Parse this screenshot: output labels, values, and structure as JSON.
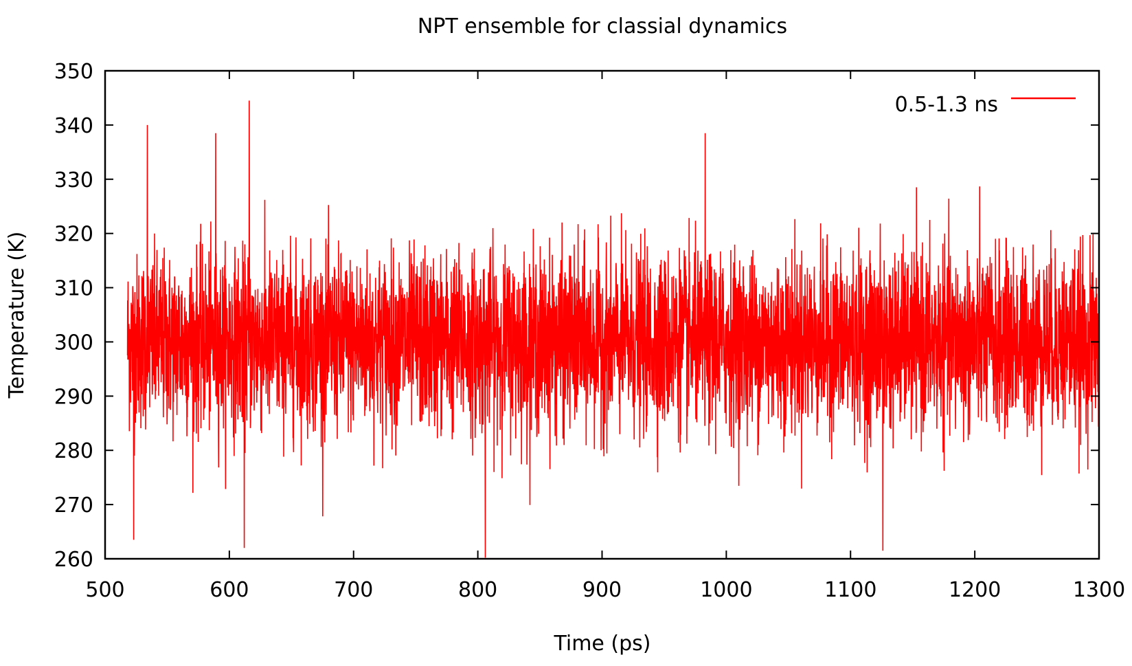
{
  "chart_data": {
    "type": "line",
    "title": "NPT ensemble for classial dynamics",
    "xlabel": "Time (ps)",
    "ylabel": "Temperature (K)",
    "xlim": [
      500,
      1300
    ],
    "ylim": [
      260,
      350
    ],
    "xticks": [
      500,
      600,
      700,
      800,
      900,
      1000,
      1100,
      1200,
      1300
    ],
    "yticks": [
      260,
      270,
      280,
      290,
      300,
      310,
      320,
      330,
      340,
      350
    ],
    "grid": false,
    "legend_position": "top-right",
    "series": [
      {
        "name": "0.5-1.3 ns",
        "color": "#ff0000",
        "x_range": [
          518,
          1300
        ],
        "mean": 300,
        "std": 8,
        "peaks": [
          {
            "x": 534,
            "y": 340
          },
          {
            "x": 589,
            "y": 338.5
          },
          {
            "x": 616,
            "y": 344.5
          },
          {
            "x": 983,
            "y": 338.5
          },
          {
            "x": 1126,
            "y": 261.5
          },
          {
            "x": 806,
            "y": 260.2
          },
          {
            "x": 612,
            "y": 262
          },
          {
            "x": 523,
            "y": 263.5
          }
        ]
      }
    ]
  }
}
